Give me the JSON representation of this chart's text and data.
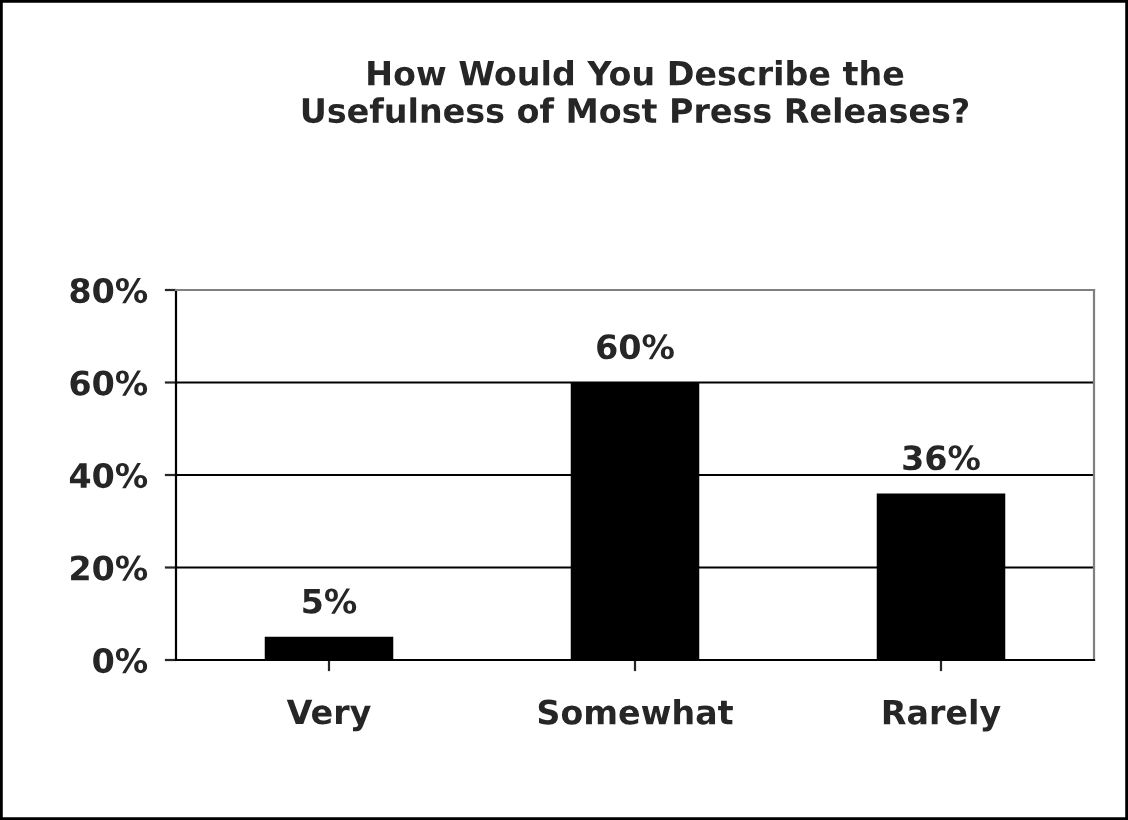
{
  "chart_data": {
    "type": "bar",
    "title": "How Would You Describe the\nUsefulness of Most Press Releases?",
    "categories": [
      "Very",
      "Somewhat",
      "Rarely"
    ],
    "values": [
      5,
      60,
      36
    ],
    "value_labels": [
      "5%",
      "60%",
      "36%"
    ],
    "color": "#000000",
    "ylim": [
      0,
      80
    ],
    "yticks": [
      {
        "value": 0,
        "label": "0%"
      },
      {
        "value": 20,
        "label": "20%"
      },
      {
        "value": 40,
        "label": "40%"
      },
      {
        "value": 60,
        "label": "60%"
      },
      {
        "value": 80,
        "label": "80%"
      }
    ],
    "grid": "y",
    "legend": false
  }
}
